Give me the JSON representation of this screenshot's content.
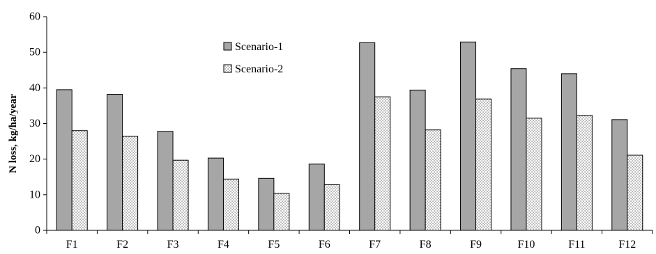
{
  "chart_data": {
    "type": "bar",
    "title": "",
    "xlabel": "",
    "ylabel": "N loss, kg/ha/year",
    "ylim": [
      0,
      60
    ],
    "yticks": [
      0,
      10,
      20,
      30,
      40,
      50,
      60
    ],
    "grid": false,
    "legend_position": "top-center",
    "categories": [
      "F1",
      "F2",
      "F3",
      "F4",
      "F5",
      "F6",
      "F7",
      "F8",
      "F9",
      "F10",
      "F11",
      "F12"
    ],
    "series": [
      {
        "name": "Scenario-1",
        "fill": "solid-gray",
        "color": "#a6a6a6",
        "values": [
          39.5,
          38.2,
          27.8,
          20.3,
          14.6,
          18.6,
          52.7,
          39.4,
          52.9,
          45.4,
          44.0,
          31.1
        ]
      },
      {
        "name": "Scenario-2",
        "fill": "dotted",
        "color": "#ffffff",
        "values": [
          28.0,
          26.4,
          19.7,
          14.4,
          10.4,
          12.8,
          37.5,
          28.2,
          36.9,
          31.5,
          32.3,
          21.1
        ]
      }
    ]
  }
}
